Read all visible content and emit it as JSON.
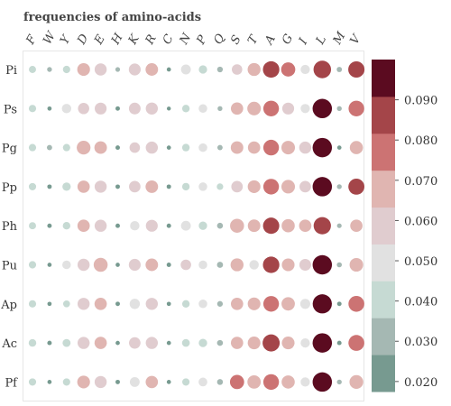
{
  "chart_data": {
    "type": "heatmap",
    "title": "frequencies of amino-acids",
    "columns": [
      "F",
      "W",
      "Y",
      "D",
      "E",
      "H",
      "K",
      "R",
      "C",
      "N",
      "P",
      "Q",
      "S",
      "T",
      "A",
      "G",
      "I",
      "L",
      "M",
      "V"
    ],
    "rows": [
      "Pi",
      "Ps",
      "Pg",
      "Pp",
      "Ph",
      "Pu",
      "Ap",
      "Ac",
      "Pf"
    ],
    "values": [
      [
        0.039,
        0.028,
        0.04,
        0.066,
        0.063,
        0.027,
        0.062,
        0.065,
        0.025,
        0.052,
        0.045,
        0.032,
        0.055,
        0.067,
        0.084,
        0.073,
        0.049,
        0.089,
        0.03,
        0.083
      ],
      [
        0.04,
        0.025,
        0.05,
        0.059,
        0.062,
        0.026,
        0.061,
        0.063,
        0.024,
        0.041,
        0.046,
        0.028,
        0.064,
        0.07,
        0.08,
        0.062,
        0.049,
        0.098,
        0.028,
        0.08
      ],
      [
        0.04,
        0.03,
        0.04,
        0.071,
        0.065,
        0.026,
        0.055,
        0.063,
        0.025,
        0.041,
        0.046,
        0.03,
        0.065,
        0.064,
        0.08,
        0.07,
        0.063,
        0.098,
        0.025,
        0.068
      ],
      [
        0.04,
        0.026,
        0.045,
        0.064,
        0.063,
        0.026,
        0.06,
        0.065,
        0.026,
        0.041,
        0.046,
        0.036,
        0.06,
        0.066,
        0.08,
        0.07,
        0.06,
        0.098,
        0.028,
        0.082
      ],
      [
        0.039,
        0.026,
        0.041,
        0.064,
        0.063,
        0.026,
        0.05,
        0.062,
        0.026,
        0.052,
        0.045,
        0.033,
        0.072,
        0.065,
        0.083,
        0.068,
        0.064,
        0.088,
        0.027,
        0.064
      ],
      [
        0.04,
        0.025,
        0.046,
        0.063,
        0.072,
        0.025,
        0.062,
        0.065,
        0.026,
        0.055,
        0.046,
        0.034,
        0.067,
        0.05,
        0.084,
        0.066,
        0.061,
        0.098,
        0.029,
        0.07
      ],
      [
        0.04,
        0.025,
        0.038,
        0.063,
        0.064,
        0.026,
        0.054,
        0.063,
        0.025,
        0.041,
        0.046,
        0.032,
        0.064,
        0.066,
        0.08,
        0.069,
        0.053,
        0.097,
        0.026,
        0.081
      ],
      [
        0.041,
        0.026,
        0.043,
        0.063,
        0.064,
        0.025,
        0.06,
        0.063,
        0.025,
        0.042,
        0.045,
        0.033,
        0.064,
        0.066,
        0.087,
        0.066,
        0.049,
        0.098,
        0.026,
        0.081
      ],
      [
        0.04,
        0.025,
        0.04,
        0.066,
        0.063,
        0.026,
        0.052,
        0.064,
        0.025,
        0.04,
        0.047,
        0.033,
        0.073,
        0.069,
        0.08,
        0.068,
        0.049,
        0.098,
        0.028,
        0.071
      ]
    ],
    "colorbar": {
      "ticks": [
        0.02,
        0.03,
        0.04,
        0.05,
        0.06,
        0.07,
        0.08,
        0.09
      ],
      "tick_labels": [
        "0.020",
        "0.030",
        "0.040",
        "0.050",
        "0.060",
        "0.070",
        "0.080",
        "0.090"
      ],
      "range": [
        0.0175,
        0.1
      ],
      "colors": [
        "#779a90",
        "#a5b8b3",
        "#c6dad3",
        "#e1e1e1",
        "#e0cccf",
        "#e0b5b1",
        "#cc7373",
        "#a44549",
        "#5b0b20"
      ]
    },
    "size_encoding": "value"
  }
}
